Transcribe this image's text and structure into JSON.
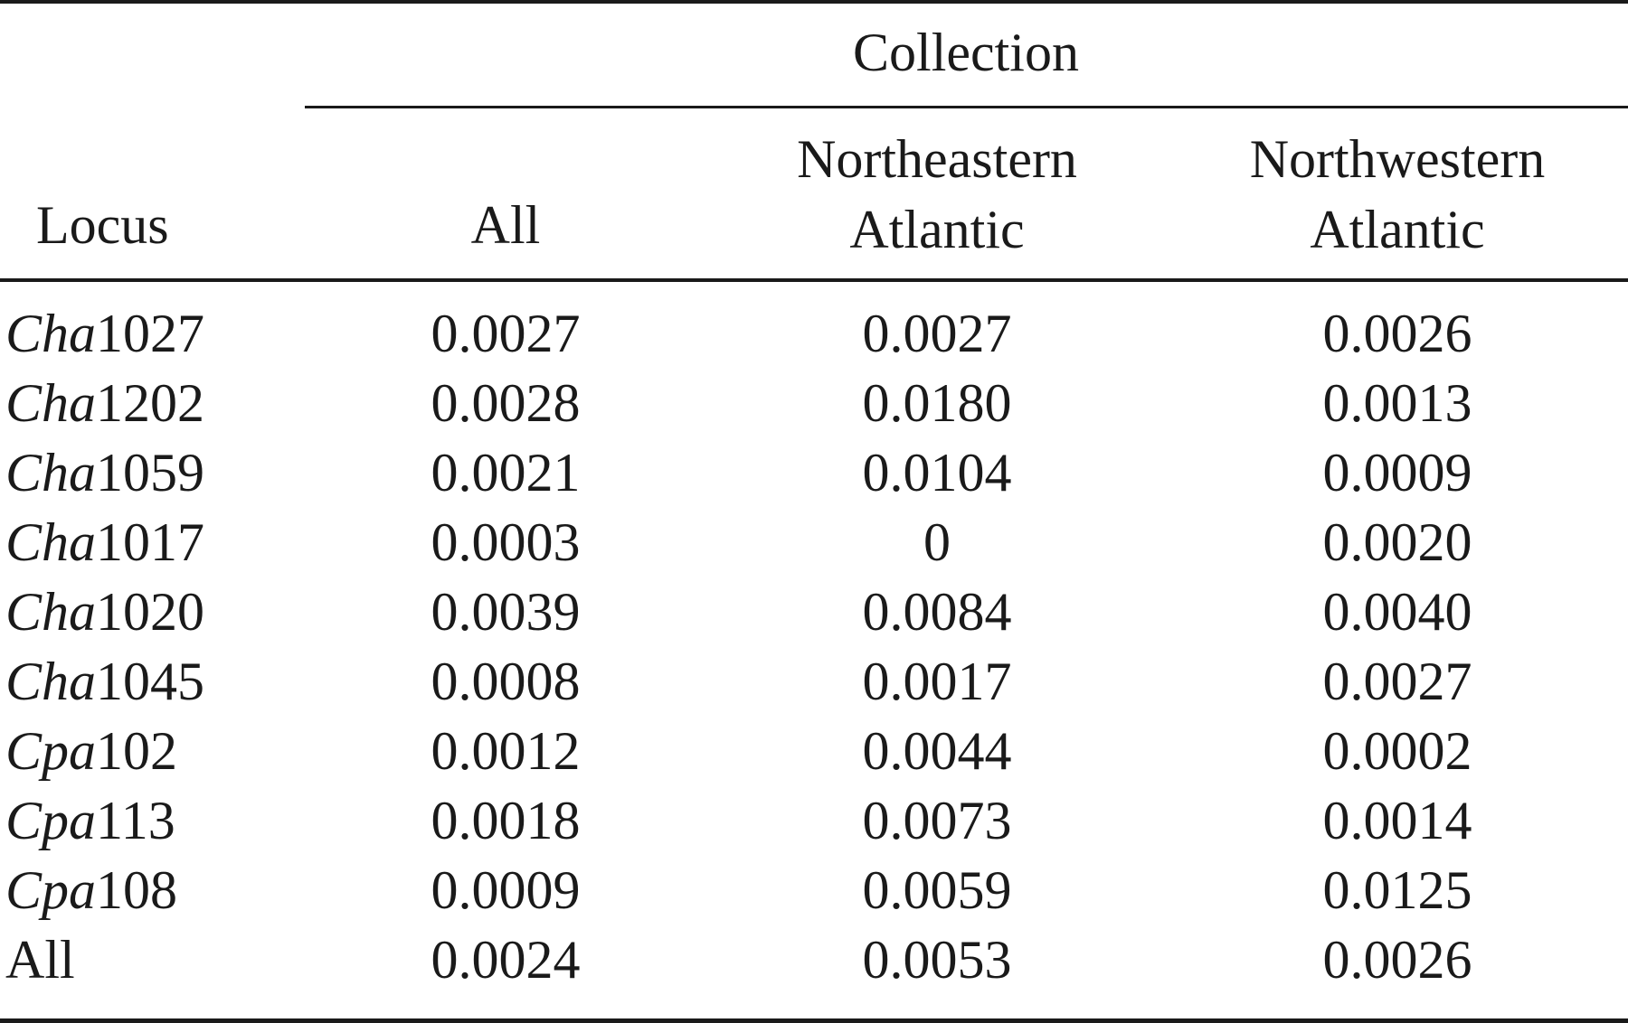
{
  "table": {
    "spanner": "Collection",
    "headers": {
      "locus": "Locus",
      "all": "All",
      "northeastern": [
        "Northeastern",
        "Atlantic"
      ],
      "northwestern": [
        "Northwestern",
        "Atlantic"
      ]
    },
    "rows": [
      {
        "prefix": "Cha",
        "suffix": "1027",
        "all": "0.0027",
        "ne": "0.0027",
        "nw": "0.0026"
      },
      {
        "prefix": "Cha",
        "suffix": "1202",
        "all": "0.0028",
        "ne": "0.0180",
        "nw": "0.0013"
      },
      {
        "prefix": "Cha",
        "suffix": "1059",
        "all": "0.0021",
        "ne": "0.0104",
        "nw": "0.0009"
      },
      {
        "prefix": "Cha",
        "suffix": "1017",
        "all": "0.0003",
        "ne": "0",
        "nw": "0.0020"
      },
      {
        "prefix": "Cha",
        "suffix": "1020",
        "all": "0.0039",
        "ne": "0.0084",
        "nw": "0.0040"
      },
      {
        "prefix": "Cha",
        "suffix": "1045",
        "all": "0.0008",
        "ne": "0.0017",
        "nw": "0.0027"
      },
      {
        "prefix": "Cpa",
        "suffix": "102",
        "all": "0.0012",
        "ne": "0.0044",
        "nw": "0.0002"
      },
      {
        "prefix": "Cpa",
        "suffix": "113",
        "all": "0.0018",
        "ne": "0.0073",
        "nw": "0.0014"
      },
      {
        "prefix": "Cpa",
        "suffix": "108",
        "all": "0.0009",
        "ne": "0.0059",
        "nw": "0.0125"
      },
      {
        "prefix": "",
        "suffix": "All",
        "all": "0.0024",
        "ne": "0.0053",
        "nw": "0.0026"
      }
    ]
  }
}
